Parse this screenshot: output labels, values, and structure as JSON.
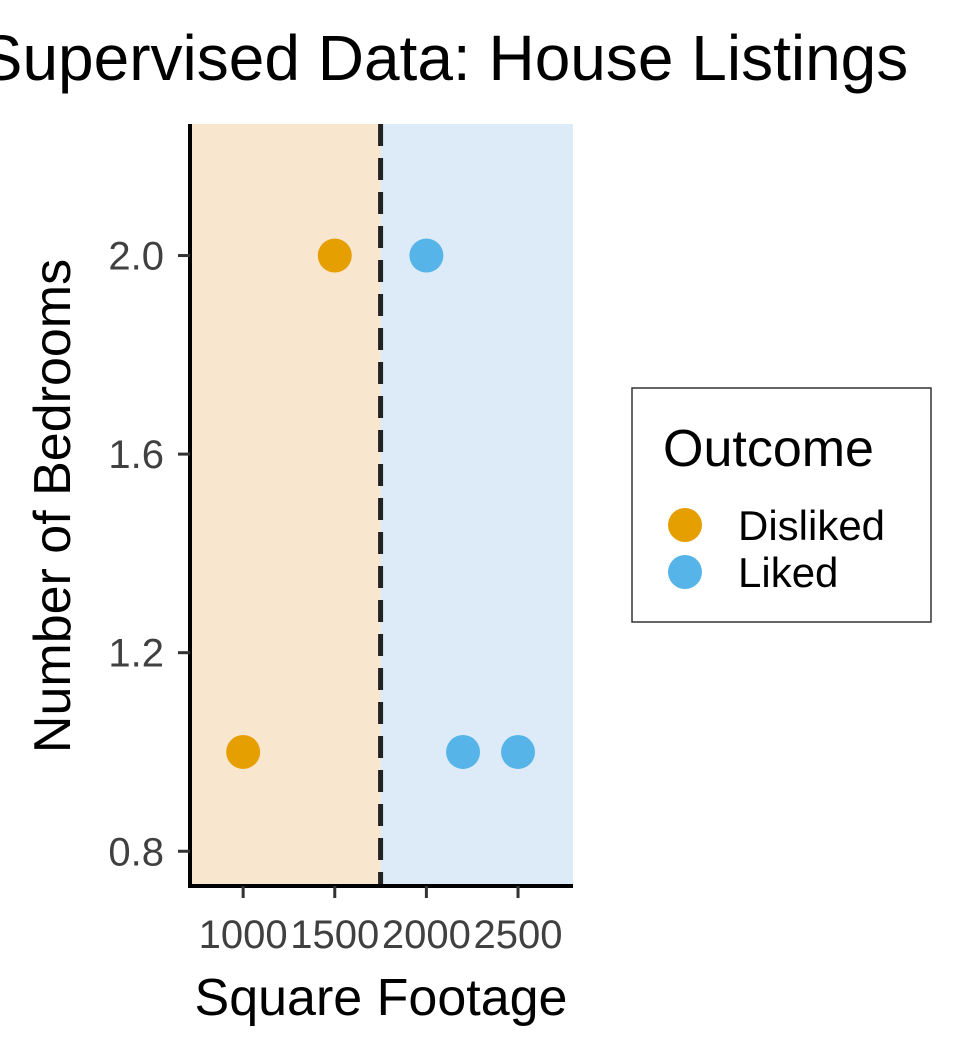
{
  "chart_data": {
    "type": "scatter",
    "title": "Supervised Data: House Listings",
    "xlabel": "Square Footage",
    "ylabel": "Number of Bedrooms",
    "xlim": [
      710,
      2800
    ],
    "ylim": [
      0.73,
      2.265
    ],
    "x_ticks": [
      1000,
      1500,
      2000,
      2500
    ],
    "y_ticks": [
      0.8,
      1.2,
      1.6,
      2.0
    ],
    "y_tick_labels": [
      "0.8",
      "1.2",
      "1.6",
      "2.0"
    ],
    "decision_boundary_x": 1750,
    "regions": [
      {
        "name": "Disliked",
        "from": 710,
        "to": 1750,
        "color": "#F8E7CE"
      },
      {
        "name": "Liked",
        "from": 1750,
        "to": 2800,
        "color": "#DCEBF7"
      }
    ],
    "legend": {
      "title": "Outcome",
      "placement": "right"
    },
    "grid": false,
    "series": [
      {
        "name": "Disliked",
        "color": "#E69F00",
        "points": [
          {
            "x": 1000,
            "y": 1.0
          },
          {
            "x": 1500,
            "y": 2.0
          }
        ]
      },
      {
        "name": "Liked",
        "color": "#56B4E9",
        "points": [
          {
            "x": 2000,
            "y": 2.0
          },
          {
            "x": 2200,
            "y": 1.0
          },
          {
            "x": 2500,
            "y": 1.0
          }
        ]
      }
    ]
  }
}
